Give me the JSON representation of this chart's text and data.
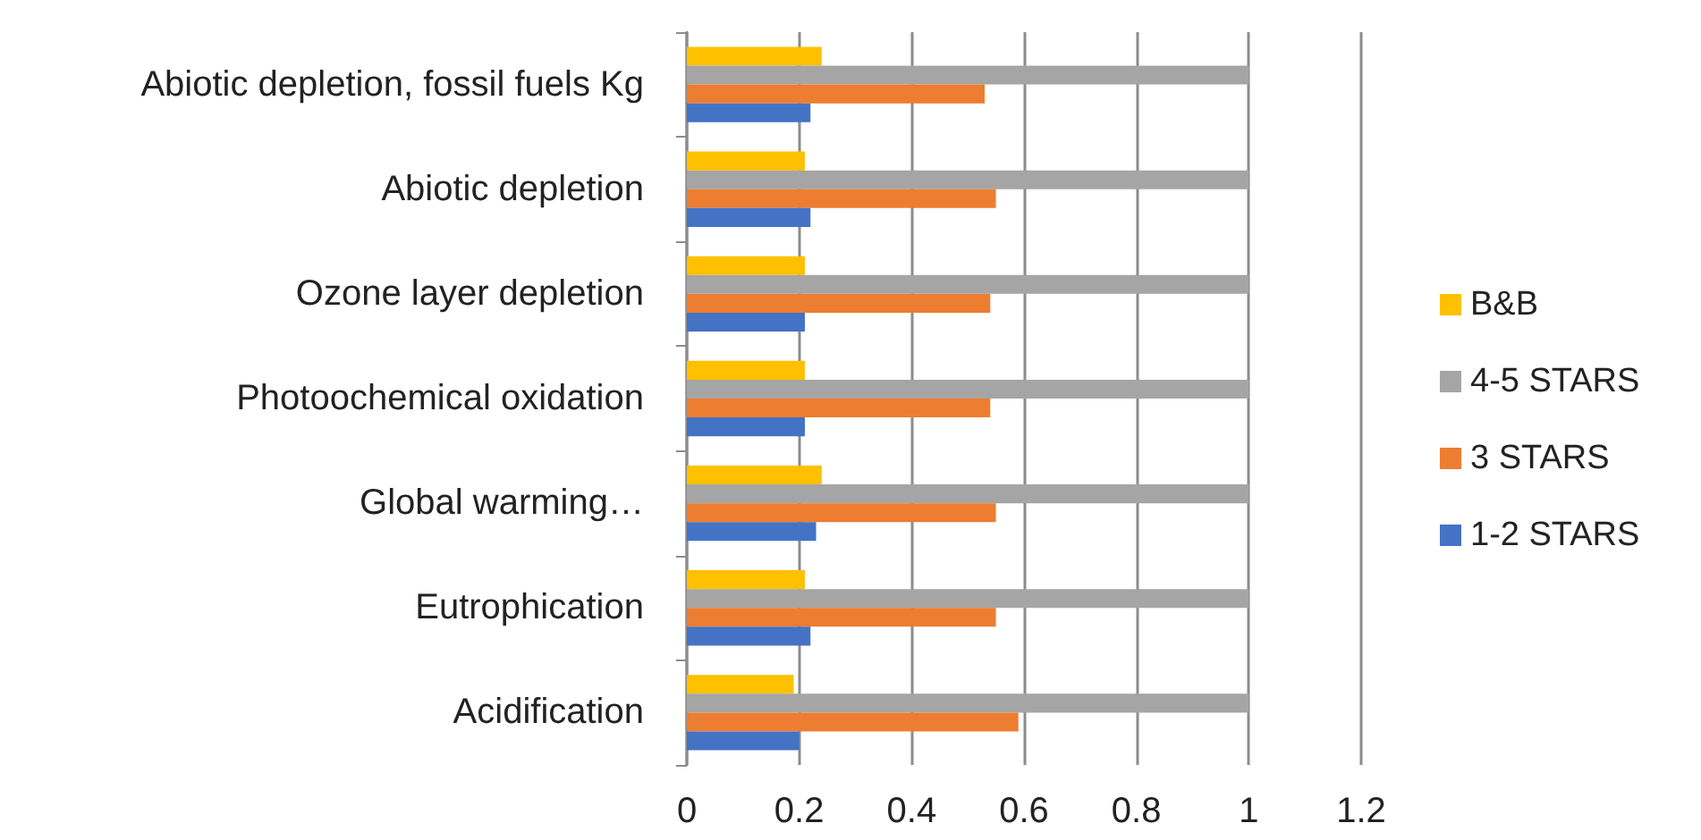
{
  "chart_data": {
    "type": "bar",
    "orientation": "horizontal",
    "categories": [
      "Abiotic depletion, fossil fuels Kg",
      "Abiotic depletion",
      "Ozone layer depletion",
      "Photoochemical oxidation",
      "Global warming…",
      "Eutrophication",
      "Acidification"
    ],
    "series": [
      {
        "name": "B&B",
        "color": "#ffc000",
        "values": [
          0.24,
          0.21,
          0.21,
          0.21,
          0.24,
          0.21,
          0.19
        ]
      },
      {
        "name": "4-5 STARS",
        "color": "#a5a5a5",
        "values": [
          1,
          1,
          1,
          1,
          1,
          1,
          1
        ]
      },
      {
        "name": "3 STARS",
        "color": "#ed7d31",
        "values": [
          0.53,
          0.55,
          0.54,
          0.54,
          0.55,
          0.55,
          0.59
        ]
      },
      {
        "name": "1-2 STARS",
        "color": "#4472c4",
        "values": [
          0.22,
          0.22,
          0.21,
          0.21,
          0.23,
          0.22,
          0.2
        ]
      }
    ],
    "xlim": [
      0,
      1.2
    ],
    "xticks": [
      0,
      0.2,
      0.4,
      0.6,
      0.8,
      1,
      1.2
    ],
    "grid": "x",
    "legend": "right"
  }
}
